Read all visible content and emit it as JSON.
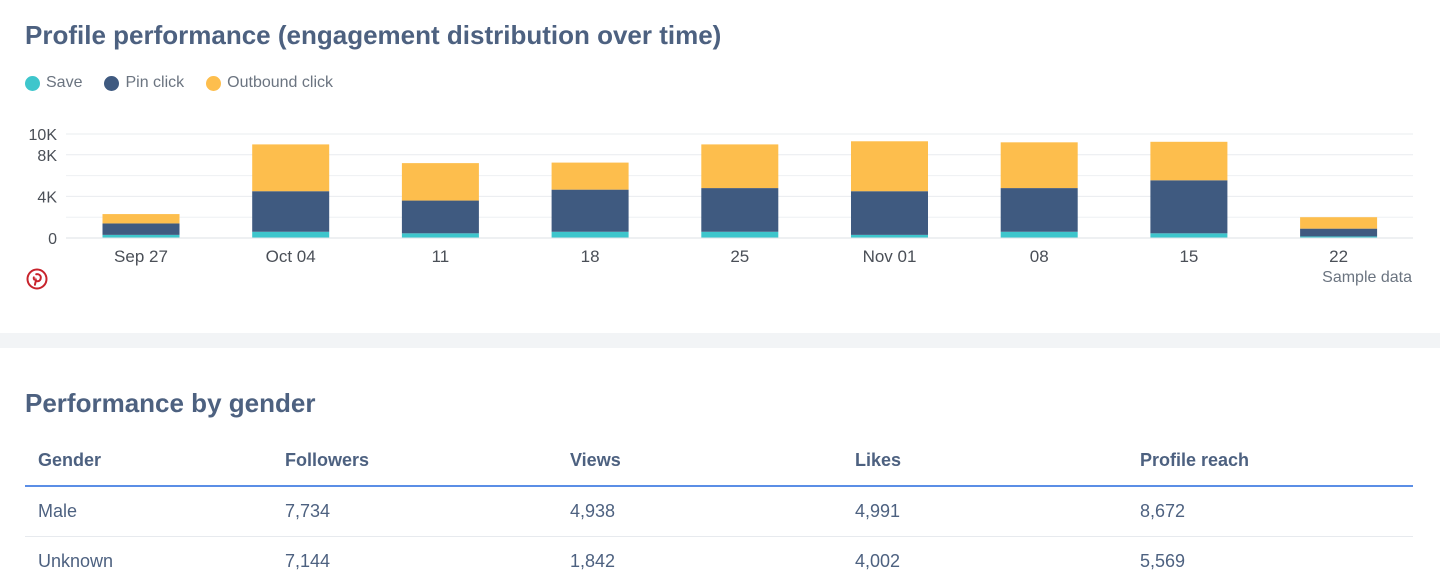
{
  "chart_section": {
    "title": "Profile performance (engagement distribution over time)",
    "sample_note": "Sample data",
    "brand_icon": "pinterest-icon"
  },
  "chart_data": {
    "type": "bar",
    "stacked": true,
    "title": "Profile performance (engagement distribution over time)",
    "categories": [
      "Sep 27",
      "Oct 04",
      "11",
      "18",
      "25",
      "Nov 01",
      "08",
      "15",
      "22"
    ],
    "series": [
      {
        "name": "Save",
        "color": "#3ec6cc",
        "values": [
          300,
          600,
          450,
          600,
          600,
          300,
          600,
          450,
          150
        ]
      },
      {
        "name": "Pin click",
        "color": "#3f5a80",
        "values": [
          1100,
          3900,
          3150,
          4050,
          4200,
          4200,
          4200,
          5100,
          750
        ]
      },
      {
        "name": "Outbound click",
        "color": "#fdbe4d",
        "values": [
          900,
          4500,
          3600,
          2600,
          4200,
          4800,
          4400,
          3700,
          1100
        ]
      }
    ],
    "yticks": [
      0,
      4000,
      8000,
      10000
    ],
    "ytick_labels": [
      "0",
      "4K",
      "8K",
      "10K"
    ],
    "ylim": [
      0,
      10000
    ],
    "grid": true,
    "legend": "top-left",
    "xlabel": "",
    "ylabel": ""
  },
  "gender_section": {
    "title": "Performance by gender",
    "columns": [
      "Gender",
      "Followers",
      "Views",
      "Likes",
      "Profile reach"
    ],
    "rows": [
      [
        "Male",
        "7,734",
        "4,938",
        "4,991",
        "8,672"
      ],
      [
        "Unknown",
        "7,144",
        "1,842",
        "4,002",
        "5,569"
      ]
    ]
  }
}
